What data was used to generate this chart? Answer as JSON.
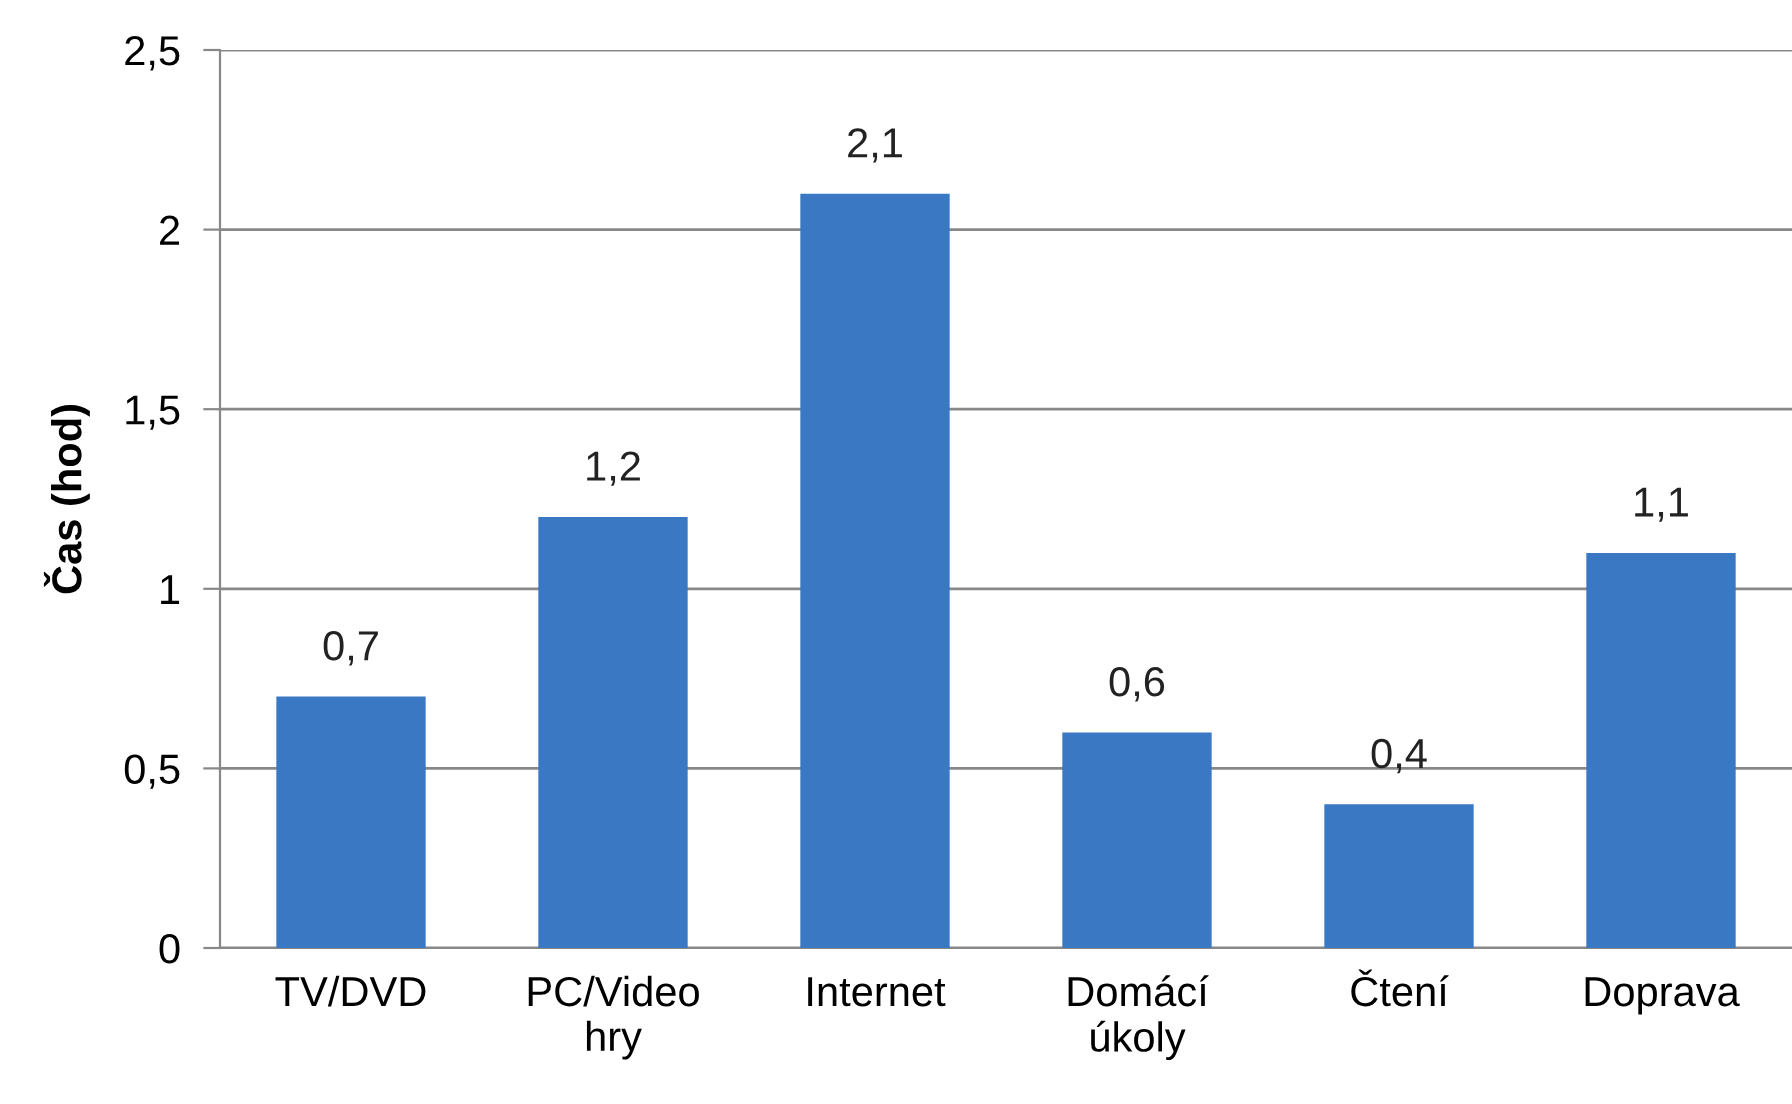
{
  "chart_data": {
    "type": "bar",
    "ylabel": "Čas (hod)",
    "categories": [
      "TV/DVD",
      "PC/Video\nhry",
      "Internet",
      "Domácí\núkoly",
      "Čtení",
      "Doprava"
    ],
    "values": [
      0.7,
      1.2,
      2.1,
      0.6,
      0.4,
      1.1
    ],
    "value_labels": [
      "0,7",
      "1,2",
      "2,1",
      "0,6",
      "0,4",
      "1,1"
    ],
    "color": "#3a78c4",
    "ylim": [
      0,
      2.5
    ],
    "yticks": [
      0,
      {
        "value": 0.5,
        "label": "0,5"
      },
      1,
      {
        "value": 1.5,
        "label": "1,5"
      },
      2,
      {
        "value": 2.5,
        "label": "2,5"
      }
    ],
    "grid": "y"
  }
}
